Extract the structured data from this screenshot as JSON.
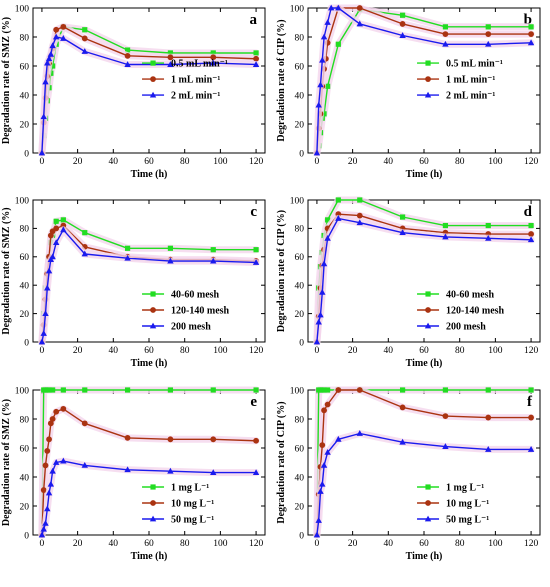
{
  "colors": {
    "green": "#22dd22",
    "red": "#aa3311",
    "blue": "#1a1aee",
    "band": "#f4d6ec",
    "frame": "#000000"
  },
  "marker_names": [
    "square",
    "circle",
    "triangle"
  ],
  "chart_data": [
    {
      "panel_label": "a",
      "type": "line",
      "xlabel": "Time (h)",
      "ylabel": "Degradation rate of SMZ (%)",
      "xlim": [
        -5,
        125
      ],
      "ylim": [
        0,
        100
      ],
      "xticks": [
        0,
        20,
        40,
        60,
        80,
        100,
        120
      ],
      "yticks": [
        0,
        20,
        40,
        60,
        80,
        100
      ],
      "legend_position": "right",
      "series": [
        {
          "name": "0.5 mL min⁻¹",
          "color": "green",
          "marker": "square",
          "x": [
            0,
            1,
            2,
            3,
            4,
            5,
            6,
            8,
            12,
            24,
            48,
            72,
            96,
            120
          ],
          "y": [
            0,
            12,
            24,
            36,
            45,
            55,
            60,
            75,
            87,
            85,
            71,
            69,
            69,
            69
          ]
        },
        {
          "name": "1 mL min⁻¹",
          "color": "red",
          "marker": "circle",
          "x": [
            0,
            1,
            2,
            3,
            4,
            5,
            6,
            8,
            12,
            24,
            48,
            72,
            96,
            120
          ],
          "y": [
            0,
            21,
            38,
            53,
            62,
            67,
            72,
            85,
            87,
            79,
            67,
            66,
            66,
            65
          ]
        },
        {
          "name": "2 mL min⁻¹",
          "color": "blue",
          "marker": "triangle",
          "x": [
            0,
            1,
            2,
            3,
            4,
            5,
            6,
            8,
            12,
            24,
            48,
            72,
            96,
            120
          ],
          "y": [
            0,
            25,
            49,
            62,
            65,
            68,
            74,
            80,
            79,
            70,
            61,
            61,
            62,
            61
          ]
        }
      ]
    },
    {
      "panel_label": "b",
      "type": "line",
      "xlabel": "Time (h)",
      "ylabel": "Degradation rate of CIP (%)",
      "xlim": [
        -5,
        125
      ],
      "ylim": [
        0,
        100
      ],
      "xticks": [
        0,
        20,
        40,
        60,
        80,
        100,
        120
      ],
      "yticks": [
        0,
        20,
        40,
        60,
        80,
        100
      ],
      "legend_position": "right",
      "series": [
        {
          "name": "0.5 mL min⁻¹",
          "color": "green",
          "marker": "square",
          "x": [
            0,
            1,
            2,
            3,
            4,
            6,
            12,
            24,
            48,
            72,
            96,
            120
          ],
          "y": [
            0,
            5,
            14,
            24,
            27,
            46,
            75,
            99,
            95,
            87,
            87,
            87
          ]
        },
        {
          "name": "1 mL min⁻¹",
          "color": "red",
          "marker": "circle",
          "x": [
            0,
            1,
            2,
            3,
            4,
            5,
            6,
            12,
            24,
            48,
            72,
            96,
            120
          ],
          "y": [
            0,
            17,
            27,
            46,
            58,
            65,
            76,
            100,
            100,
            89,
            82,
            82,
            82
          ]
        },
        {
          "name": "2 mL min⁻¹",
          "color": "blue",
          "marker": "triangle",
          "x": [
            0,
            1,
            2,
            3,
            4,
            6,
            8,
            12,
            24,
            48,
            72,
            96,
            120
          ],
          "y": [
            0,
            33,
            47,
            64,
            80,
            90,
            100,
            100,
            89,
            81,
            75,
            75,
            76
          ]
        }
      ]
    },
    {
      "panel_label": "c",
      "type": "line",
      "xlabel": "Time (h)",
      "ylabel": "Degradation rate of SMZ (%)",
      "xlim": [
        -5,
        125
      ],
      "ylim": [
        0,
        100
      ],
      "xticks": [
        0,
        20,
        40,
        60,
        80,
        100,
        120
      ],
      "yticks": [
        0,
        20,
        40,
        60,
        80,
        100
      ],
      "legend_position": "bottom-right",
      "series": [
        {
          "name": "40-60 mesh",
          "color": "green",
          "marker": "square",
          "x": [
            0,
            1,
            2,
            3,
            4,
            5,
            6,
            8,
            12,
            24,
            48,
            72,
            96,
            120
          ],
          "y": [
            0,
            20,
            38,
            48,
            60,
            70,
            75,
            85,
            86,
            77,
            66,
            66,
            65,
            65
          ]
        },
        {
          "name": "120-140 mesh",
          "color": "red",
          "marker": "circle",
          "x": [
            0,
            1,
            2,
            3,
            4,
            5,
            6,
            8,
            12,
            24,
            48,
            72,
            96,
            120
          ],
          "y": [
            0,
            12,
            30,
            48,
            60,
            75,
            78,
            80,
            82,
            67,
            60,
            58,
            58,
            57
          ]
        },
        {
          "name": "200 mesh",
          "color": "blue",
          "marker": "triangle",
          "x": [
            0,
            1,
            2,
            3,
            4,
            5,
            6,
            8,
            12,
            24,
            48,
            72,
            96,
            120
          ],
          "y": [
            0,
            6,
            20,
            38,
            50,
            58,
            60,
            70,
            79,
            62,
            59,
            57,
            57,
            56
          ]
        }
      ]
    },
    {
      "panel_label": "d",
      "type": "line",
      "xlabel": "Time (h)",
      "ylabel": "Degradation rate of CIP (%)",
      "xlim": [
        -5,
        125
      ],
      "ylim": [
        0,
        100
      ],
      "xticks": [
        0,
        20,
        40,
        60,
        80,
        100,
        120
      ],
      "yticks": [
        0,
        20,
        40,
        60,
        80,
        100
      ],
      "legend_position": "bottom-right",
      "series": [
        {
          "name": "40-60 mesh",
          "color": "green",
          "marker": "square",
          "x": [
            0,
            1,
            2,
            3,
            4,
            6,
            12,
            24,
            48,
            72,
            96,
            120
          ],
          "y": [
            0,
            38,
            53,
            63,
            75,
            86,
            100,
            100,
            88,
            82,
            82,
            82
          ]
        },
        {
          "name": "120-140 mesh",
          "color": "red",
          "marker": "circle",
          "x": [
            0,
            1,
            2,
            3,
            4,
            6,
            12,
            24,
            48,
            72,
            96,
            120
          ],
          "y": [
            0,
            18,
            38,
            54,
            65,
            80,
            90,
            89,
            80,
            77,
            76,
            76
          ]
        },
        {
          "name": "200 mesh",
          "color": "blue",
          "marker": "triangle",
          "x": [
            0,
            1,
            2,
            3,
            4,
            6,
            12,
            24,
            48,
            72,
            96,
            120
          ],
          "y": [
            0,
            14,
            19,
            35,
            55,
            73,
            87,
            84,
            77,
            74,
            73,
            72
          ]
        }
      ]
    },
    {
      "panel_label": "e",
      "type": "line",
      "xlabel": "Time (h)",
      "ylabel": "Degradation rate of SMZ (%)",
      "xlim": [
        -5,
        125
      ],
      "ylim": [
        0,
        100
      ],
      "xticks": [
        0,
        20,
        40,
        60,
        80,
        100,
        120
      ],
      "yticks": [
        0,
        20,
        40,
        60,
        80,
        100
      ],
      "legend_position": "bottom-right",
      "series": [
        {
          "name": "1 mg L⁻¹",
          "color": "green",
          "marker": "square",
          "x": [
            0,
            1,
            2,
            3,
            4,
            6,
            12,
            24,
            48,
            72,
            96,
            120
          ],
          "y": [
            0,
            100,
            100,
            100,
            100,
            100,
            100,
            100,
            100,
            100,
            100,
            100
          ]
        },
        {
          "name": "10 mg L⁻¹",
          "color": "red",
          "marker": "circle",
          "x": [
            0,
            1,
            2,
            3,
            4,
            5,
            6,
            8,
            12,
            24,
            48,
            72,
            96,
            120
          ],
          "y": [
            0,
            31,
            48,
            58,
            66,
            77,
            80,
            85,
            87,
            77,
            67,
            66,
            66,
            65
          ]
        },
        {
          "name": "50 mg L⁻¹",
          "color": "blue",
          "marker": "triangle",
          "x": [
            0,
            1,
            2,
            3,
            4,
            5,
            6,
            8,
            12,
            24,
            48,
            72,
            96,
            120
          ],
          "y": [
            0,
            4,
            8,
            18,
            29,
            35,
            44,
            50,
            51,
            48,
            45,
            44,
            43,
            43
          ]
        }
      ]
    },
    {
      "panel_label": "f",
      "type": "line",
      "xlabel": "Time (h)",
      "ylabel": "Degradation rate of CIP (%)",
      "xlim": [
        -5,
        125
      ],
      "ylim": [
        0,
        100
      ],
      "xticks": [
        0,
        20,
        40,
        60,
        80,
        100,
        120
      ],
      "yticks": [
        0,
        20,
        40,
        60,
        80,
        100
      ],
      "legend_position": "bottom-right",
      "series": [
        {
          "name": "1 mg L⁻¹",
          "color": "green",
          "marker": "square",
          "x": [
            0,
            1,
            2,
            3,
            4,
            6,
            12,
            24,
            48,
            72,
            96,
            120
          ],
          "y": [
            0,
            100,
            100,
            100,
            100,
            100,
            100,
            100,
            100,
            100,
            100,
            100
          ]
        },
        {
          "name": "10 mg L⁻¹",
          "color": "red",
          "marker": "circle",
          "x": [
            0,
            1,
            2,
            3,
            4,
            6,
            12,
            24,
            48,
            72,
            96,
            120
          ],
          "y": [
            0,
            28,
            47,
            62,
            86,
            90,
            100,
            100,
            88,
            82,
            81,
            81
          ]
        },
        {
          "name": "50 mg L⁻¹",
          "color": "blue",
          "marker": "triangle",
          "x": [
            0,
            1,
            2,
            3,
            4,
            6,
            12,
            24,
            48,
            72,
            96,
            120
          ],
          "y": [
            0,
            10,
            30,
            35,
            48,
            57,
            66,
            70,
            64,
            61,
            59,
            59
          ]
        }
      ]
    }
  ]
}
